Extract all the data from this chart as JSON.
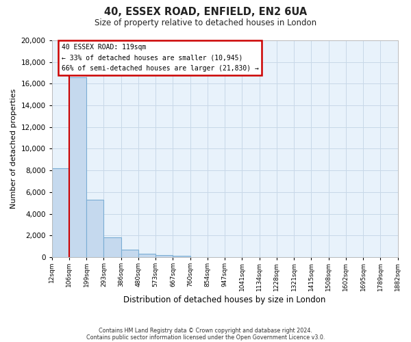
{
  "title": "40, ESSEX ROAD, ENFIELD, EN2 6UA",
  "subtitle": "Size of property relative to detached houses in London",
  "xlabel": "Distribution of detached houses by size in London",
  "ylabel": "Number of detached properties",
  "bar_values": [
    8200,
    16600,
    5300,
    1800,
    700,
    300,
    200,
    100,
    0,
    0,
    0,
    0,
    0,
    0,
    0,
    0,
    0,
    0,
    0
  ],
  "bin_labels": [
    "12sqm",
    "106sqm",
    "199sqm",
    "293sqm",
    "386sqm",
    "480sqm",
    "573sqm",
    "667sqm",
    "760sqm",
    "854sqm",
    "947sqm",
    "1041sqm",
    "1134sqm",
    "1228sqm",
    "1321sqm",
    "1415sqm",
    "1508sqm",
    "1602sqm",
    "1695sqm",
    "1789sqm",
    "1882sqm"
  ],
  "bar_color": "#c5d9ee",
  "bar_edge_color": "#7aadd4",
  "property_line_x": 1.0,
  "annotation_title": "40 ESSEX ROAD: 119sqm",
  "annotation_line1": "← 33% of detached houses are smaller (10,945)",
  "annotation_line2": "66% of semi-detached houses are larger (21,830) →",
  "annotation_box_color": "#ffffff",
  "annotation_border_color": "#cc0000",
  "vertical_line_color": "#cc0000",
  "ylim": [
    0,
    20000
  ],
  "yticks": [
    0,
    2000,
    4000,
    6000,
    8000,
    10000,
    12000,
    14000,
    16000,
    18000,
    20000
  ],
  "grid_color": "#c8d8e8",
  "bg_color": "#e8f2fb",
  "footer1": "Contains HM Land Registry data © Crown copyright and database right 2024.",
  "footer2": "Contains public sector information licensed under the Open Government Licence v3.0."
}
